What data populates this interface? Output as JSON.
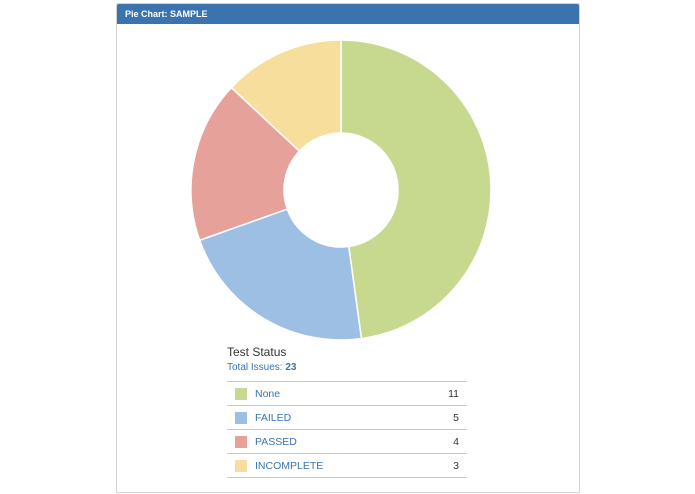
{
  "panel": {
    "title": "Pie Chart: SAMPLE"
  },
  "legend": {
    "title": "Test Status",
    "total_label": "Total Issues:",
    "total_value": "23",
    "items": [
      {
        "label": "None",
        "count": "11",
        "color": "#c6d98f"
      },
      {
        "label": "FAILED",
        "count": "5",
        "color": "#9dbfe3"
      },
      {
        "label": "PASSED",
        "count": "4",
        "color": "#e6a19b"
      },
      {
        "label": "INCOMPLETE",
        "count": "3",
        "color": "#f8de9c"
      }
    ]
  },
  "chart_data": {
    "type": "pie",
    "subtype": "donut",
    "title": "Pie Chart: SAMPLE",
    "legend_title": "Test Status",
    "total": 23,
    "categories": [
      "None",
      "FAILED",
      "PASSED",
      "INCOMPLETE"
    ],
    "values": [
      11,
      5,
      4,
      3
    ],
    "colors": [
      "#c6d98f",
      "#9dbfe3",
      "#e6a19b",
      "#f8de9c"
    ],
    "legend_position": "bottom"
  }
}
